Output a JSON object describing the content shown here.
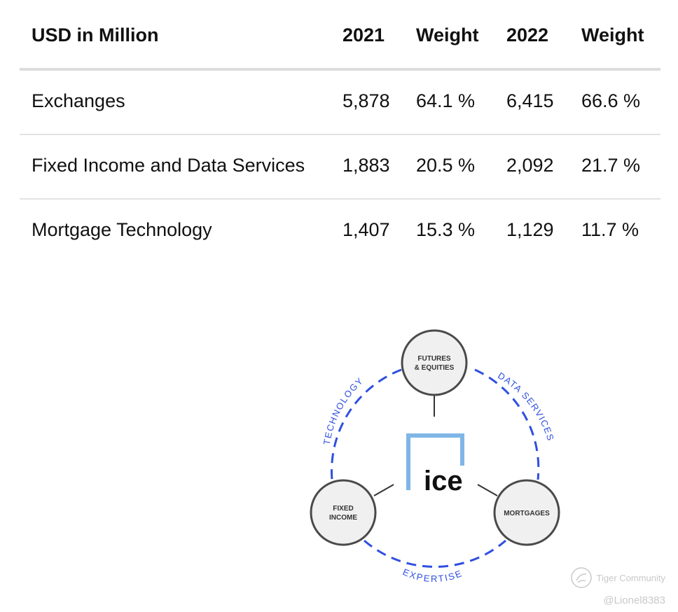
{
  "table": {
    "header": [
      "USD in Million",
      "2021",
      "Weight",
      "2022",
      "Weight"
    ],
    "rows": [
      [
        "Exchanges",
        "5,878",
        "64.1 %",
        "6,415",
        "66.6 %"
      ],
      [
        "Fixed Income and Data Services",
        "1,883",
        "20.5 %",
        "2,092",
        "21.7 %"
      ],
      [
        "Mortgage Technology",
        "1,407",
        "15.3 %",
        "1,129",
        "11.7 %"
      ]
    ]
  },
  "diagram": {
    "logo_text": "ice",
    "nodes": {
      "top": [
        "FUTURES",
        "& EQUITIES"
      ],
      "left": [
        "FIXED",
        "INCOME"
      ],
      "right": [
        "MORTGAGES"
      ]
    },
    "arc_labels": {
      "left": "TECHNOLOGY",
      "right": "DATA SERVICES",
      "bottom": "EXPERTISE"
    },
    "colors": {
      "ring": "#2f4fe0",
      "logo_frame": "#7fb6e6",
      "node_fill": "#f0f0f0",
      "node_stroke": "#4a4a4a"
    }
  },
  "watermark": {
    "brand": "Tiger Community",
    "user": "@Lionel8383"
  }
}
